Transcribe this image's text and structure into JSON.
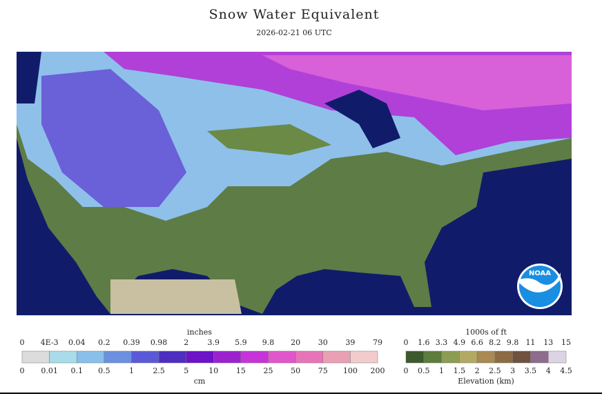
{
  "header": {
    "title": "Snow Water Equivalent",
    "subtitle": "2026-02-21 06 UTC"
  },
  "legend_swe": {
    "top_unit": "inches",
    "top_labels": [
      "0",
      "4E-3",
      "0.04",
      "0.2",
      "0.39",
      "0.98",
      "2",
      "3.9",
      "5.9",
      "9.8",
      "20",
      "30",
      "39",
      "79"
    ],
    "bottom_labels": [
      "0",
      "0.01",
      "0.1",
      "0.5",
      "1",
      "2.5",
      "5",
      "10",
      "15",
      "25",
      "50",
      "75",
      "100",
      "200"
    ],
    "bottom_unit": "cm",
    "colors": [
      "#dcdcdc",
      "#a8dce8",
      "#88c0ea",
      "#6c90e0",
      "#5a5ad8",
      "#4e2ec0",
      "#6c12c8",
      "#9c22d0",
      "#c634d8",
      "#e256cc",
      "#e874b8",
      "#eaa0b4",
      "#f2cccc"
    ]
  },
  "legend_elev": {
    "top_unit": "1000s of ft",
    "top_labels": [
      "0",
      "1.6",
      "3.3",
      "4.9",
      "6.6",
      "8.2",
      "9.8",
      "11",
      "13",
      "15"
    ],
    "bottom_labels": [
      "0",
      "0.5",
      "1",
      "1.5",
      "2",
      "2.5",
      "3",
      "3.5",
      "4",
      "4.5"
    ],
    "bottom_title": "Elevation (km)",
    "colors": [
      "#3c5a2c",
      "#5e7c3c",
      "#8c9c52",
      "#b2aa62",
      "#a88a52",
      "#8c6c42",
      "#70523e",
      "#8e6c8e",
      "#dcd4e4"
    ]
  },
  "logo": "NOAA"
}
